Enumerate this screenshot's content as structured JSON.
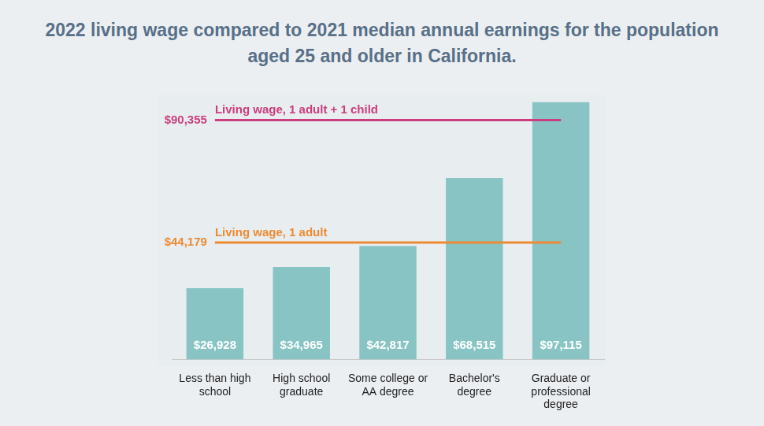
{
  "chart_data": {
    "type": "bar",
    "title": "2022 living wage compared to 2021 median annual earnings for the population aged 25 and older in California.",
    "categories": [
      "Less than high school",
      "High school graduate",
      "Some college or AA degree",
      "Bachelor's degree",
      "Graduate or professional degree"
    ],
    "values": [
      26928,
      34965,
      42817,
      68515,
      97115
    ],
    "value_labels": [
      "$26,928",
      "$34,965",
      "$42,817",
      "$68,515",
      "$97,115"
    ],
    "color": "#88c4c4",
    "data_labels": true,
    "ylim": [
      0,
      100000
    ],
    "grid": false,
    "tick_labels": "x",
    "annotations": [
      {
        "label": "Living wage, 1 adult + 1 child",
        "value": 90355,
        "value_label": "$90,355",
        "color": "#cc3d7e"
      },
      {
        "label": "Living wage, 1 adult",
        "value": 44179,
        "value_label": "$44,179",
        "color": "#ee8a32"
      }
    ]
  }
}
